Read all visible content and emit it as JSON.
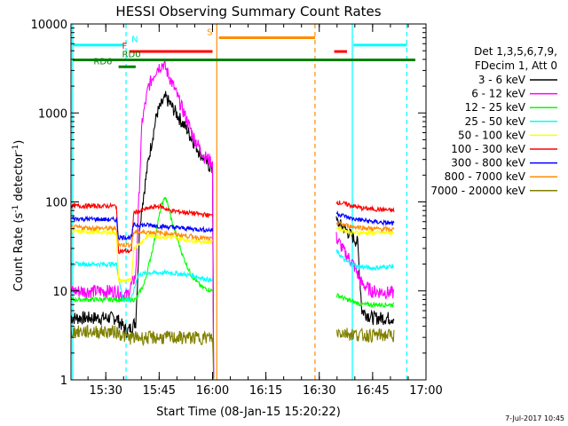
{
  "chart_data": {
    "type": "line",
    "title": "HESSI Observing Summary Count Rates",
    "xlabel": "Start Time (08-Jan-15 15:20:22)",
    "ylabel_main": "Count Rate (s",
    "ylabel_sup": "-1",
    "ylabel_tail": " detector",
    "ylabel_end": ")",
    "y_scale": "log",
    "xlim": [
      15.337,
      17.0
    ],
    "ylim": [
      1,
      10000
    ],
    "x_ticks": [
      {
        "t": 15.5,
        "label": "15:30"
      },
      {
        "t": 15.75,
        "label": "15:45"
      },
      {
        "t": 16.0,
        "label": "16:00"
      },
      {
        "t": 16.25,
        "label": "16:15"
      },
      {
        "t": 16.5,
        "label": "16:30"
      },
      {
        "t": 16.75,
        "label": "16:45"
      },
      {
        "t": 17.0,
        "label": "17:00"
      }
    ],
    "y_ticks": [
      {
        "v": 1,
        "label": "1"
      },
      {
        "v": 10,
        "label": "10"
      },
      {
        "v": 100,
        "label": "100"
      },
      {
        "v": 1000,
        "label": "1000"
      },
      {
        "v": 10000,
        "label": "10000"
      }
    ],
    "legend_header": [
      "Det 1,3,5,6,7,9,",
      "FDecim 1, Att 0"
    ],
    "legend_position": "right",
    "timestamp": "7-Jul-2017 10:45",
    "series": [
      {
        "name": "3 - 6 keV",
        "color": "#000000",
        "points": [
          [
            15.337,
            5
          ],
          [
            15.55,
            5
          ],
          [
            15.6,
            3.5
          ],
          [
            15.64,
            4.5
          ],
          [
            15.66,
            60
          ],
          [
            15.7,
            300
          ],
          [
            15.74,
            1000
          ],
          [
            15.78,
            1500
          ],
          [
            15.83,
            1000
          ],
          [
            15.88,
            650
          ],
          [
            15.93,
            400
          ],
          [
            15.97,
            280
          ],
          [
            16.0,
            230
          ],
          [
            16.005,
            1.2
          ]
        ],
        "points2": [
          [
            16.58,
            60
          ],
          [
            16.62,
            50
          ],
          [
            16.66,
            40
          ],
          [
            16.68,
            35
          ],
          [
            16.7,
            6
          ],
          [
            16.75,
            5
          ],
          [
            16.85,
            5
          ]
        ]
      },
      {
        "name": "6 - 12 keV",
        "color": "#ff00ff",
        "points": [
          [
            15.337,
            10
          ],
          [
            15.55,
            10
          ],
          [
            15.58,
            9
          ],
          [
            15.6,
            9
          ],
          [
            15.64,
            15
          ],
          [
            15.67,
            800
          ],
          [
            15.7,
            2000
          ],
          [
            15.74,
            3200
          ],
          [
            15.77,
            3600
          ],
          [
            15.81,
            2200
          ],
          [
            15.86,
            1100
          ],
          [
            15.91,
            550
          ],
          [
            15.96,
            330
          ],
          [
            16.0,
            280
          ],
          [
            16.005,
            1.2
          ]
        ],
        "points2": [
          [
            16.58,
            40
          ],
          [
            16.62,
            27
          ],
          [
            16.66,
            20
          ],
          [
            16.7,
            12
          ],
          [
            16.75,
            10
          ],
          [
            16.85,
            9.5
          ]
        ]
      },
      {
        "name": "12 - 25 keV",
        "color": "#00ff00",
        "points": [
          [
            15.337,
            8
          ],
          [
            15.55,
            8
          ],
          [
            15.64,
            8
          ],
          [
            15.68,
            12
          ],
          [
            15.72,
            30
          ],
          [
            15.76,
            90
          ],
          [
            15.78,
            115
          ],
          [
            15.81,
            60
          ],
          [
            15.86,
            25
          ],
          [
            15.9,
            15
          ],
          [
            15.95,
            11
          ],
          [
            16.0,
            10
          ]
        ],
        "points2": [
          [
            16.58,
            9
          ],
          [
            16.63,
            8
          ],
          [
            16.7,
            7
          ],
          [
            16.85,
            7
          ]
        ]
      },
      {
        "name": "25 - 50 keV",
        "color": "#00ffff",
        "points": [
          [
            15.337,
            20
          ],
          [
            15.55,
            20
          ],
          [
            15.58,
            8
          ],
          [
            15.62,
            8
          ],
          [
            15.65,
            15
          ],
          [
            15.7,
            16
          ],
          [
            15.8,
            16
          ],
          [
            15.9,
            15
          ],
          [
            16.0,
            13
          ]
        ],
        "points2": [
          [
            16.58,
            28
          ],
          [
            16.62,
            22
          ],
          [
            16.67,
            19
          ],
          [
            16.75,
            18
          ],
          [
            16.85,
            19
          ]
        ]
      },
      {
        "name": "50 - 100 keV",
        "color": "#ffff00",
        "points": [
          [
            15.337,
            47
          ],
          [
            15.55,
            45
          ],
          [
            15.56,
            13
          ],
          [
            15.62,
            13
          ],
          [
            15.63,
            30
          ],
          [
            15.7,
            42
          ],
          [
            15.8,
            40
          ],
          [
            15.9,
            37
          ],
          [
            16.0,
            35
          ]
        ],
        "points2": [
          [
            16.58,
            52
          ],
          [
            16.65,
            45
          ],
          [
            16.75,
            45
          ],
          [
            16.85,
            45
          ]
        ]
      },
      {
        "name": "100 - 300 keV",
        "color": "#ff0000",
        "points": [
          [
            15.337,
            90
          ],
          [
            15.55,
            90
          ],
          [
            15.56,
            28
          ],
          [
            15.62,
            28
          ],
          [
            15.63,
            75
          ],
          [
            15.7,
            85
          ],
          [
            15.75,
            90
          ],
          [
            15.8,
            80
          ],
          [
            15.9,
            75
          ],
          [
            16.0,
            70
          ]
        ],
        "points2": [
          [
            16.58,
            100
          ],
          [
            16.62,
            95
          ],
          [
            16.7,
            85
          ],
          [
            16.85,
            80
          ]
        ]
      },
      {
        "name": "300 - 800 keV",
        "color": "#0000ff",
        "points": [
          [
            15.337,
            65
          ],
          [
            15.55,
            63
          ],
          [
            15.56,
            40
          ],
          [
            15.62,
            40
          ],
          [
            15.63,
            55
          ],
          [
            15.7,
            55
          ],
          [
            15.8,
            52
          ],
          [
            15.9,
            50
          ],
          [
            16.0,
            48
          ]
        ],
        "points2": [
          [
            16.58,
            75
          ],
          [
            16.65,
            65
          ],
          [
            16.75,
            60
          ],
          [
            16.85,
            57
          ]
        ]
      },
      {
        "name": "800 - 7000 keV",
        "color": "#ff8c00",
        "points": [
          [
            15.337,
            52
          ],
          [
            15.55,
            50
          ],
          [
            15.56,
            33
          ],
          [
            15.62,
            33
          ],
          [
            15.63,
            45
          ],
          [
            15.7,
            46
          ],
          [
            15.8,
            44
          ],
          [
            15.9,
            41
          ],
          [
            16.0,
            38
          ]
        ],
        "points2": [
          [
            16.58,
            58
          ],
          [
            16.65,
            53
          ],
          [
            16.75,
            50
          ],
          [
            16.85,
            49
          ]
        ]
      },
      {
        "name": "7000 - 20000 keV",
        "color": "#808000",
        "points": [
          [
            15.337,
            3.5
          ],
          [
            15.55,
            3.5
          ],
          [
            15.6,
            3
          ],
          [
            15.7,
            3
          ],
          [
            15.8,
            3
          ],
          [
            15.9,
            3
          ],
          [
            16.0,
            3
          ],
          [
            16.005,
            1
          ]
        ],
        "points2": [
          [
            16.58,
            3.5
          ],
          [
            16.7,
            3.2
          ],
          [
            16.85,
            3.2
          ]
        ]
      }
    ],
    "vertical_lines": [
      {
        "t": 15.345,
        "color": "#00ffff",
        "style": "solid"
      },
      {
        "t": 15.595,
        "color": "#00ffff",
        "style": "dashed"
      },
      {
        "t": 16.02,
        "color": "#ff8c00",
        "style": "solid"
      },
      {
        "t": 16.48,
        "color": "#ff8c00",
        "style": "dashed"
      },
      {
        "t": 16.655,
        "color": "#00ffff",
        "style": "solid"
      },
      {
        "t": 16.91,
        "color": "#00ffff",
        "style": "dashed"
      }
    ],
    "flag_bars": [
      {
        "label": "N",
        "color": "#00ffff",
        "t0": 15.345,
        "t1": 15.58,
        "y": 5800,
        "label_t": 15.62,
        "label_side": "right"
      },
      {
        "label": "",
        "color": "#00ffff",
        "t0": 16.66,
        "t1": 16.91,
        "y": 5800
      },
      {
        "label": "S",
        "color": "#ff8c00",
        "t0": 16.03,
        "t1": 16.48,
        "y": 7000,
        "label_t": 16.0,
        "label_side": "left"
      },
      {
        "label": "F",
        "color": "#ff0000",
        "t0": 15.61,
        "t1": 16.0,
        "y": 4900,
        "label_t": 15.6,
        "label_side": "left"
      },
      {
        "label": "",
        "color": "#ff0000",
        "t0": 16.57,
        "t1": 16.63,
        "y": 4900
      },
      {
        "label": "RD0",
        "color": "#008000",
        "t0": 15.345,
        "t1": 16.95,
        "y": 3950,
        "label_t": 15.62,
        "label_side": "center"
      },
      {
        "label": "RD6",
        "color": "#008000",
        "t0": 15.56,
        "t1": 15.64,
        "y": 3300,
        "label_t": 15.53,
        "label_side": "left"
      }
    ]
  }
}
